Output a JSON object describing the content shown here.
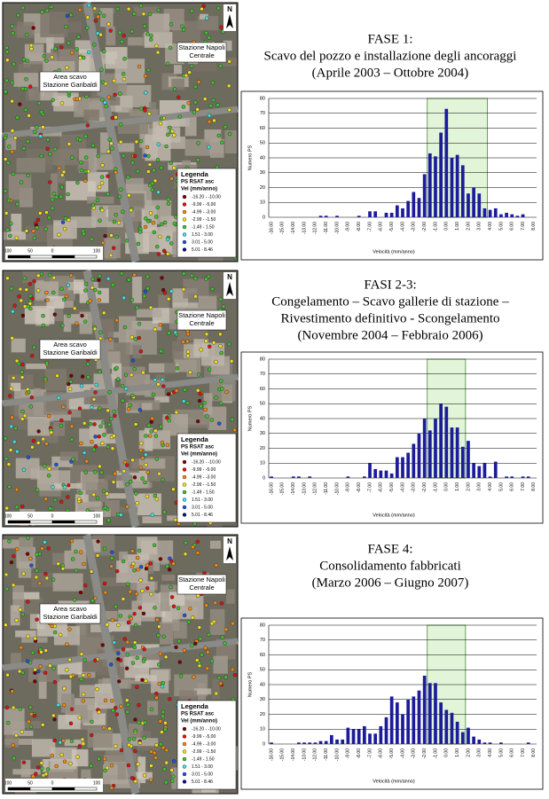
{
  "chart_data": [
    {
      "type": "bar",
      "title_lines": [
        "FASE 1:",
        "Scavo del pozzo e installazione degli ancoraggi",
        "(Aprile 2003 – Ottobre 2004)"
      ],
      "ylabel": "Numero PS",
      "xlabel": "Velocità (mm/anno)",
      "categories": [
        "-16.00",
        null,
        "-15.00",
        null,
        "-14.00",
        null,
        "-13.00",
        null,
        "-12.00",
        null,
        "-11.00",
        null,
        "-10.00",
        null,
        "-9.00",
        null,
        "-8.00",
        null,
        "-7.00",
        null,
        "-6.00",
        null,
        "-5.00",
        null,
        "-4.00",
        null,
        "-3.00",
        null,
        "-2.00",
        null,
        "-1.00",
        null,
        "0.00",
        null,
        "1.00",
        null,
        "2.00",
        null,
        "3.00",
        null,
        "4.00",
        null,
        "5.00",
        null,
        "6.00",
        null,
        "7.00",
        null,
        "8.00"
      ],
      "values": [
        0,
        0,
        0,
        0,
        0,
        0,
        0,
        0,
        0,
        1,
        1,
        0,
        1,
        0,
        0,
        0,
        1,
        0,
        4,
        4,
        0,
        3,
        3,
        8,
        6,
        11,
        17,
        13,
        29,
        43,
        41,
        57,
        73,
        40,
        42,
        35,
        16,
        20,
        16,
        6,
        5,
        6,
        2,
        3,
        2,
        1,
        2,
        0,
        0
      ],
      "color": "#1c1c9a",
      "ylim": [
        0,
        80
      ],
      "yticks": [
        0,
        10,
        20,
        30,
        40,
        50,
        60,
        70,
        80
      ],
      "grid": true,
      "highlight": [
        -1.5,
        3.5
      ],
      "highlight_color": "#e2f5d9"
    },
    {
      "type": "bar",
      "title_lines": [
        "FASI 2-3:",
        "Congelamento – Scavo gallerie di stazione –",
        "Rivestimento definitivo - Scongelamento",
        "(Novembre 2004 – Febbraio 2006)"
      ],
      "ylabel": "Numero PS",
      "xlabel": "Velocità (mm/anno)",
      "categories": [
        "-16.00",
        null,
        "-15.00",
        null,
        "-14.00",
        null,
        "-13.00",
        null,
        "-12.00",
        null,
        "-11.00",
        null,
        "-10.00",
        null,
        "-9.00",
        null,
        "-8.00",
        null,
        "-7.00",
        null,
        "-6.00",
        null,
        "-5.00",
        null,
        "-4.00",
        null,
        "-3.00",
        null,
        "-2.00",
        null,
        "-1.00",
        null,
        "0.00",
        null,
        "1.00",
        null,
        "2.00",
        null,
        "3.00",
        null,
        "4.00",
        null,
        "5.00",
        null,
        "6.00",
        null,
        "7.00",
        null,
        "8.00"
      ],
      "values": [
        1,
        0,
        0,
        0,
        1,
        1,
        0,
        1,
        0,
        0,
        0,
        0,
        0,
        0,
        1,
        0,
        0,
        1,
        10,
        6,
        5,
        5,
        3,
        14,
        14,
        17,
        23,
        30,
        40,
        32,
        40,
        50,
        48,
        34,
        34,
        21,
        25,
        10,
        8,
        10,
        1,
        11,
        0,
        1,
        1,
        0,
        1,
        1,
        0
      ],
      "color": "#1c1c9a",
      "ylim": [
        0,
        80
      ],
      "yticks": [
        0,
        10,
        20,
        30,
        40,
        50,
        60,
        70,
        80
      ],
      "grid": true,
      "highlight": [
        -1.5,
        1.5
      ],
      "highlight_color": "#e2f5d9"
    },
    {
      "type": "bar",
      "title_lines": [
        "FASE 4:",
        "Consolidamento fabbricati",
        "(Marzo 2006 – Giugno 2007)"
      ],
      "ylabel": "Numero PS",
      "xlabel": "Velocità (mm/anno)",
      "categories": [
        "-16.00",
        null,
        "-15.00",
        null,
        "-14.00",
        null,
        "-13.00",
        null,
        "-12.00",
        null,
        "-11.00",
        null,
        "-10.00",
        null,
        "-9.00",
        null,
        "-8.00",
        null,
        "-7.00",
        null,
        "-6.00",
        null,
        "-5.00",
        null,
        "-4.00",
        null,
        "-3.00",
        null,
        "-2.00",
        null,
        "-1.00",
        null,
        "0.00",
        null,
        "1.00",
        null,
        "2.00",
        null,
        "3.00",
        null,
        "4.00",
        null,
        "5.00",
        null,
        "6.00",
        null,
        "7.00",
        null,
        "8.00"
      ],
      "values": [
        1,
        0,
        0,
        0,
        0,
        1,
        1,
        1,
        1,
        2,
        2,
        6,
        3,
        3,
        11,
        10,
        10,
        12,
        7,
        7,
        12,
        18,
        32,
        28,
        20,
        30,
        32,
        36,
        46,
        41,
        41,
        28,
        23,
        21,
        15,
        8,
        11,
        5,
        3,
        1,
        1,
        0,
        1,
        0,
        0,
        0,
        0,
        1,
        0
      ],
      "color": "#1c1c9a",
      "ylim": [
        0,
        80
      ],
      "yticks": [
        0,
        10,
        20,
        30,
        40,
        50,
        60,
        70,
        80
      ],
      "grid": true,
      "highlight": [
        -1.5,
        1.5
      ],
      "highlight_color": "#e2f5d9"
    }
  ],
  "map": {
    "north": "N",
    "station_label": [
      "Stazione Napoli",
      "Centrale"
    ],
    "area_label": [
      "Area scavo",
      "Stazione Garibaldi"
    ],
    "legend_title": [
      "Legenda",
      "PS RSAT asc",
      "Vel (mm/anno)"
    ],
    "legend": [
      {
        "label": "-16.20 - -10.00",
        "color": "#7a0000"
      },
      {
        "label": "-9.99 - -5.00",
        "color": "#e01010"
      },
      {
        "label": "-4.99 - -3.00",
        "color": "#f08a10"
      },
      {
        "label": "-2.99 - -1.50",
        "color": "#f0e020"
      },
      {
        "label": "-1.49 - 1.50",
        "color": "#40c030"
      },
      {
        "label": "1.51 - 3.00",
        "color": "#40e0e0"
      },
      {
        "label": "3.01 - 5.00",
        "color": "#2050e0"
      },
      {
        "label": "5.01 - 8.46",
        "color": "#101080"
      }
    ],
    "scale_labels": [
      "100",
      "50",
      "0",
      "100"
    ]
  }
}
